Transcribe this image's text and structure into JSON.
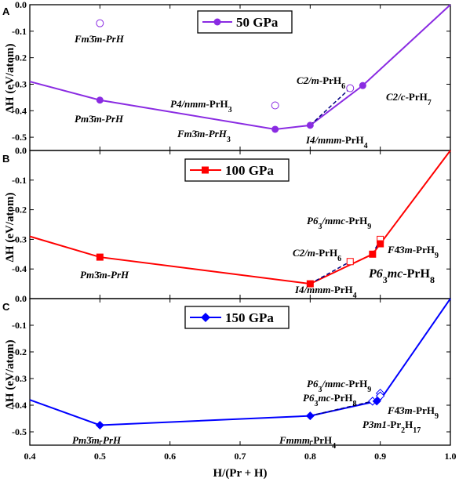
{
  "figure": {
    "xlabel": "H/(Pr + H)",
    "ylabel": "ΔH (eV/atom)",
    "xlim": [
      0.4,
      1.0
    ],
    "xticks": [
      "0.4",
      "0.5",
      "0.6",
      "0.7",
      "0.8",
      "0.9",
      "1.0"
    ]
  },
  "chart_data": [
    {
      "type": "line",
      "panel": "A",
      "legend": "50 GPa",
      "color": "#8a2be2",
      "marker": "circle",
      "ylim": [
        -0.55,
        0.0
      ],
      "yticks": [
        "0.0",
        "-0.1",
        "-0.2",
        "-0.3",
        "-0.4",
        "-0.5"
      ],
      "hull": [
        {
          "x": 0.4,
          "y": -0.29
        },
        {
          "x": 0.5,
          "y": -0.36
        },
        {
          "x": 0.75,
          "y": -0.47
        },
        {
          "x": 0.8,
          "y": -0.455
        },
        {
          "x": 0.875,
          "y": -0.305
        },
        {
          "x": 1.0,
          "y": 0.0
        }
      ],
      "stable": [
        {
          "x": 0.5,
          "y": -0.36,
          "label": "Pm3̄m-PrH"
        },
        {
          "x": 0.75,
          "y": -0.47,
          "label": "Fm3̄m-PrH3"
        },
        {
          "x": 0.8,
          "y": -0.455,
          "label": "I4/mmm-PrH4"
        },
        {
          "x": 0.875,
          "y": -0.305,
          "label": "C2/c-PrH7"
        }
      ],
      "metastable": [
        {
          "x": 0.5,
          "y": -0.07,
          "label": "Fm3̄m-PrH"
        },
        {
          "x": 0.75,
          "y": -0.38,
          "label": "P4/nmm-PrH3"
        },
        {
          "x": 0.857,
          "y": -0.315,
          "label": "C2/m-PrH6"
        }
      ]
    },
    {
      "type": "line",
      "panel": "B",
      "legend": "100 GPa",
      "color": "#ff0000",
      "marker": "square",
      "ylim": [
        -0.5,
        0.0
      ],
      "yticks": [
        "0.0",
        "-0.1",
        "-0.2",
        "-0.3",
        "-0.4"
      ],
      "hull": [
        {
          "x": 0.4,
          "y": -0.29
        },
        {
          "x": 0.5,
          "y": -0.36
        },
        {
          "x": 0.8,
          "y": -0.45
        },
        {
          "x": 0.889,
          "y": -0.35
        },
        {
          "x": 0.9,
          "y": -0.315
        },
        {
          "x": 1.0,
          "y": 0.0
        }
      ],
      "stable": [
        {
          "x": 0.5,
          "y": -0.36,
          "label": "Pm3̄m-PrH"
        },
        {
          "x": 0.8,
          "y": -0.45,
          "label": "I4/mmm-PrH4"
        },
        {
          "x": 0.889,
          "y": -0.35,
          "label": "P63mc-PrH8"
        },
        {
          "x": 0.9,
          "y": -0.315,
          "label": "F4̄3m-PrH9"
        }
      ],
      "metastable": [
        {
          "x": 0.857,
          "y": -0.375,
          "label": "C2/m-PrH6"
        },
        {
          "x": 0.9,
          "y": -0.3,
          "label": "P63/mmc-PrH9"
        }
      ]
    },
    {
      "type": "line",
      "panel": "C",
      "legend": "150 GPa",
      "color": "#0000ff",
      "marker": "diamond",
      "ylim": [
        -0.55,
        0.0
      ],
      "yticks": [
        "0.0",
        "-0.1",
        "-0.2",
        "-0.3",
        "-0.4",
        "-0.5"
      ],
      "hull": [
        {
          "x": 0.4,
          "y": -0.38
        },
        {
          "x": 0.5,
          "y": -0.475
        },
        {
          "x": 0.8,
          "y": -0.44
        },
        {
          "x": 0.895,
          "y": -0.385
        },
        {
          "x": 0.9,
          "y": -0.38
        },
        {
          "x": 1.0,
          "y": 0.0
        }
      ],
      "stable": [
        {
          "x": 0.5,
          "y": -0.475,
          "label": "Pm3̄m-PrH"
        },
        {
          "x": 0.8,
          "y": -0.44,
          "label": "Fmmm-PrH4"
        },
        {
          "x": 0.895,
          "y": -0.385,
          "label": "P3m1-Pr2H17"
        }
      ],
      "metastable": [
        {
          "x": 0.889,
          "y": -0.385,
          "label": "P63mc-PrH8"
        },
        {
          "x": 0.9,
          "y": -0.355,
          "label": "P63/mmc-PrH9"
        },
        {
          "x": 0.9,
          "y": -0.365,
          "label": "F4̄3m-PrH9"
        }
      ]
    }
  ],
  "annotations": {
    "A": {
      "letter": "A",
      "fm3m_prh_1": "Fm",
      "fm3m_prh_2": "3̄",
      "fm3m_prh_3": "m-PrH",
      "pm3m_prh_1": "Pm",
      "pm3m_prh_2": "3̄",
      "pm3m_prh_3": "m-PrH",
      "p4nmm_1": "P4/nmm",
      "p4nmm_2": "-PrH",
      "p4nmm_3": "3",
      "fm3m_prh3_1": "Fm",
      "fm3m_prh3_2": "3̄",
      "fm3m_prh3_3": "m-PrH",
      "fm3m_prh3_4": "3",
      "i4mmm_1": "I4/mmm",
      "i4mmm_2": "-PrH",
      "i4mmm_3": "4",
      "c2m_1": "C2/m",
      "c2m_2": "-PrH",
      "c2m_3": "6",
      "c2c_1": "C2/c",
      "c2c_2": "-PrH",
      "c2c_3": "7"
    },
    "B": {
      "letter": "B",
      "pm3m_prh_1": "Pm",
      "pm3m_prh_2": "3̄",
      "pm3m_prh_3": "m-PrH",
      "i4mmm_1": "I4/mmm",
      "i4mmm_2": "-PrH",
      "i4mmm_3": "4",
      "c2m_1": "C2/m",
      "c2m_2": "-PrH",
      "c2m_3": "6",
      "p63mmc_1": "P6",
      "p63mmc_2": "3",
      "p63mmc_3": "/mmc",
      "p63mmc_4": "-PrH",
      "p63mmc_5": "9",
      "f43m_1": "F",
      "f43m_2": "4̄",
      "f43m_3": "3m",
      "f43m_4": "-PrH",
      "f43m_5": "9",
      "p63mc_1": "P6",
      "p63mc_2": "3",
      "p63mc_3": "mc",
      "p63mc_4": "-PrH",
      "p63mc_5": "8"
    },
    "C": {
      "letter": "C",
      "pm3m_prh_1": "Pm",
      "pm3m_prh_2": "3̄",
      "pm3m_prh_3": "m-PrH",
      "fmmm_1": "Fmmm",
      "fmmm_2": "-PrH",
      "fmmm_3": "4",
      "p63mmc_1": "P6",
      "p63mmc_2": "3",
      "p63mmc_3": "/mmc",
      "p63mmc_4": "-PrH",
      "p63mmc_5": "9",
      "p63mc_1": "P6",
      "p63mc_2": "3",
      "p63mc_3": "mc",
      "p63mc_4": "-PrH",
      "p63mc_5": "8",
      "f43m_1": "F",
      "f43m_2": "4̄",
      "f43m_3": "3m",
      "f43m_4": "-PrH",
      "f43m_5": "9",
      "p3m1_1": "P3m1",
      "p3m1_2": "-Pr",
      "p3m1_3": "2",
      "p3m1_4": "H",
      "p3m1_5": "17"
    }
  }
}
